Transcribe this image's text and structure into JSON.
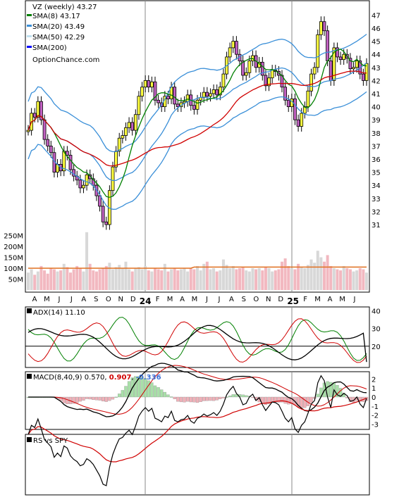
{
  "colors": {
    "up": "#ffff40",
    "down": "#c060c0",
    "sma8": "#008000",
    "sma20": "#3a8fd8",
    "sma50": "#e0e040",
    "sma200": "#0000ff",
    "ema_red": "#d00000",
    "vol_up": "#d8d8d8",
    "vol_down": "#f2b8c0",
    "vol_avg": "#e07020",
    "adx": "#000000",
    "pdi": "#008000",
    "mdi": "#d00000",
    "macd": "#000000",
    "signal": "#d00000",
    "hist_up": "#a8e0a8",
    "hist_down": "#f0b0b8"
  },
  "chart_data": [
    {
      "type": "candlestick",
      "title": "VZ (weekly) 43.27",
      "legend": [
        {
          "label": "VZ (weekly) 43.27",
          "color": "#000000"
        },
        {
          "label": "SMA(8) 43.17",
          "color": "#008000"
        },
        {
          "label": "SMA(20) 43.49",
          "color": "#3a8fd8"
        },
        {
          "label": "SMA(50) 42.29",
          "color": "#c0e0f0"
        },
        {
          "label": "SMA(200)",
          "color": "#0000ff"
        }
      ],
      "watermark": "OptionChance.com",
      "ylim": [
        30,
        48
      ],
      "yticks": [
        31,
        32,
        33,
        34,
        35,
        36,
        37,
        38,
        39,
        40,
        41,
        42,
        43,
        44,
        45,
        46,
        47
      ],
      "x_labels": [
        "A",
        "M",
        "J",
        "J",
        "A",
        "S",
        "O",
        "N",
        "D",
        "24",
        "F",
        "M",
        "A",
        "M",
        "J",
        "J",
        "A",
        "S",
        "O",
        "N",
        "D",
        "25",
        "F",
        "M",
        "A",
        "M",
        "J"
      ],
      "closes": [
        38.2,
        39.5,
        39.2,
        40.4,
        39.0,
        37.5,
        37.0,
        36.5,
        35.0,
        35.6,
        35.1,
        36.6,
        36.3,
        35.2,
        34.7,
        34.4,
        33.8,
        34.0,
        34.8,
        34.5,
        34.0,
        33.2,
        32.4,
        31.2,
        31.0,
        33.6,
        35.4,
        36.6,
        37.6,
        37.8,
        38.4,
        38.8,
        38.2,
        39.4,
        40.8,
        41.5,
        42.0,
        41.5,
        41.9,
        40.5,
        40.3,
        40.0,
        40.8,
        40.6,
        41.5,
        40.2,
        40.0,
        40.3,
        40.4,
        40.9,
        40.1,
        39.8,
        40.5,
        40.7,
        41.1,
        40.8,
        41.0,
        41.3,
        40.9,
        41.5,
        42.5,
        43.8,
        44.5,
        45.0,
        44.0,
        43.5,
        42.4,
        42.6,
        43.5,
        43.9,
        43.0,
        43.4,
        42.4,
        41.6,
        42.2,
        42.8,
        42.7,
        42.4,
        41.5,
        40.5,
        40.0,
        40.6,
        39.0,
        38.5,
        39.5,
        40.0,
        41.2,
        42.5,
        43.0,
        45.5,
        46.5,
        45.8,
        43.5,
        42.0,
        44.5,
        43.8,
        43.6,
        44.0,
        43.7,
        42.9,
        43.0,
        43.5,
        42.5,
        42.0,
        43.3
      ],
      "volume_ticks": [
        "250M",
        "200M",
        "150M",
        "100M",
        "50M"
      ],
      "volume_avg": 100
    },
    {
      "type": "line",
      "title": "ADX(14) 11.10",
      "series": [
        {
          "name": "ADX(14)",
          "last": 11.1
        }
      ],
      "yticks": [
        20,
        30,
        40
      ],
      "ylim": [
        8,
        42
      ]
    },
    {
      "type": "line",
      "title": "MACD(8,40,9) 0.570, 0.907, -0.336",
      "macd_label": "MACD(8,40,9) 0.570,",
      "signal_value": "0.907",
      "hist_value": "-0.336",
      "yticks": [
        2,
        1,
        0,
        -1,
        -2,
        -3
      ],
      "ylim": [
        -3.6,
        2.6
      ]
    },
    {
      "type": "line",
      "title": "RS vs SPY"
    }
  ]
}
